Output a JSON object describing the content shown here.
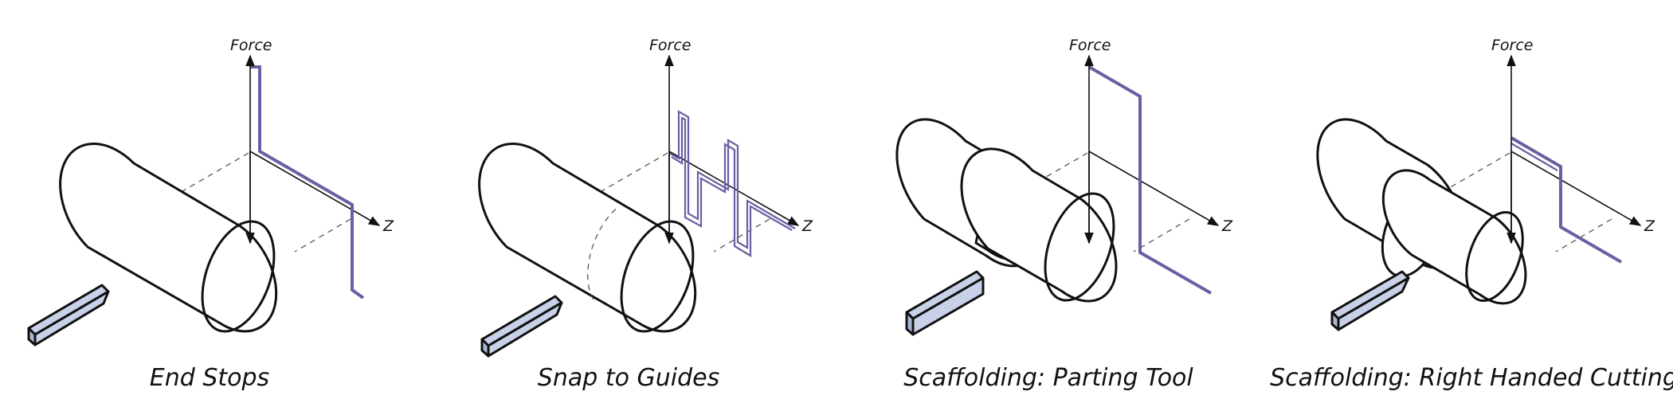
{
  "colors": {
    "force_profile": "#6a5fa3",
    "tool_face": "#c8d1e8",
    "tool_side": "#aab6d6",
    "ink": "#111111"
  },
  "panels": [
    {
      "force_label": "Force",
      "z_label": "Z",
      "caption": "End Stops"
    },
    {
      "force_label": "Force",
      "z_label": "Z",
      "caption": "Snap to Guides"
    },
    {
      "force_label": "Force",
      "z_label": "Z",
      "caption": "Scaffolding: Parting Tool"
    },
    {
      "force_label": "Force",
      "z_label": "Z",
      "caption": "Scaffolding: Right Handed Cutting"
    }
  ]
}
